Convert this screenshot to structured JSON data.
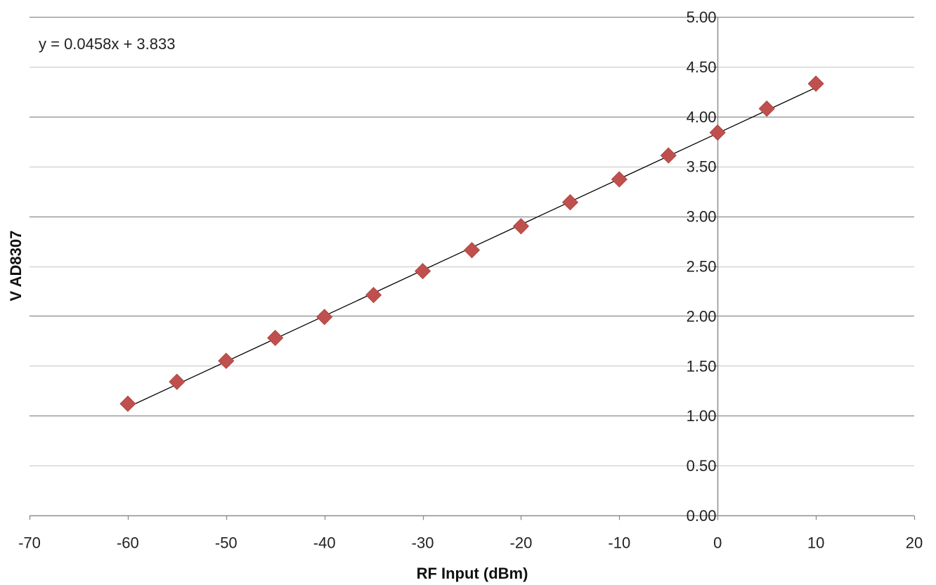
{
  "chart_data": {
    "type": "scatter",
    "xlabel": "RF Input (dBm)",
    "ylabel": "V AD8307",
    "xlim": [
      -70,
      20
    ],
    "ylim": [
      0,
      5
    ],
    "x_ticks": [
      -70,
      -60,
      -50,
      -40,
      -30,
      -20,
      -10,
      0,
      10,
      20
    ],
    "x_tick_labels": [
      "-70",
      "-60",
      "-50",
      "-40",
      "-30",
      "-20",
      "-10",
      "0",
      "10",
      "20"
    ],
    "y_ticks": [
      0,
      0.5,
      1,
      1.5,
      2,
      2.5,
      3,
      3.5,
      4,
      4.5,
      5
    ],
    "y_tick_labels": [
      "0.00",
      "0.50",
      "1.00",
      "1.50",
      "2.00",
      "2.50",
      "3.00",
      "3.50",
      "4.00",
      "4.50",
      "5.00"
    ],
    "grid": true,
    "legend": "none",
    "series": [
      {
        "marker": "diamond",
        "color": "#C0504D",
        "x": [
          -60,
          -55,
          -50,
          -45,
          -40,
          -35,
          -30,
          -25,
          -20,
          -15,
          -10,
          -5,
          0,
          5,
          10
        ],
        "y": [
          1.12,
          1.34,
          1.55,
          1.78,
          1.99,
          2.21,
          2.45,
          2.66,
          2.9,
          3.14,
          3.37,
          3.61,
          3.84,
          4.08,
          4.33
        ]
      }
    ],
    "trendline": {
      "type": "linear",
      "slope": 0.0458,
      "intercept": 3.833,
      "x_range": [
        -60,
        10
      ],
      "color": "#000000",
      "equation_label": "y = 0.0458x + 3.833"
    }
  }
}
